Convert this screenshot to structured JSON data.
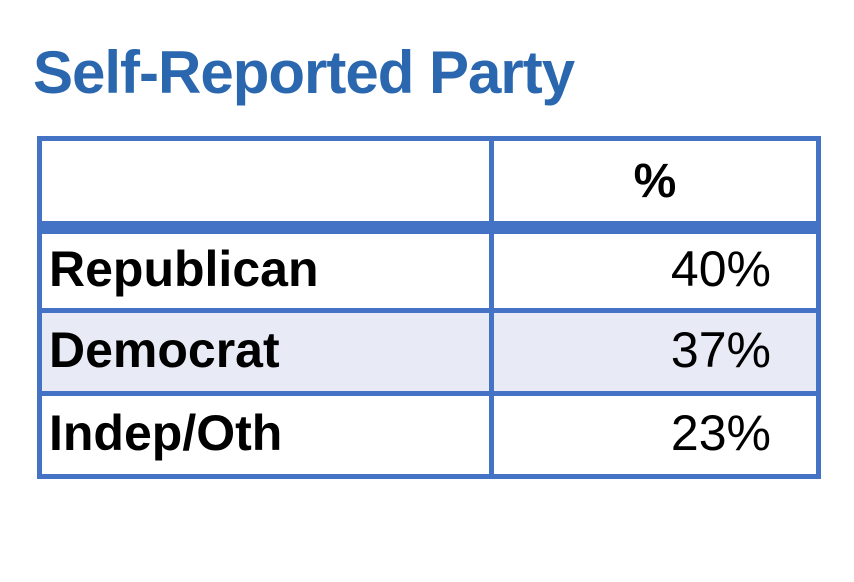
{
  "title": {
    "text": "Self-Reported Party"
  },
  "table": {
    "header": {
      "col1": "",
      "col2": "%"
    },
    "rows": [
      {
        "label": "Republican",
        "value": "40%"
      },
      {
        "label": "Democrat",
        "value": "37%"
      },
      {
        "label": "Indep/Oth",
        "value": "23%"
      }
    ]
  },
  "colors": {
    "title_blue": "#2A67AE",
    "table_border_blue": "#4472C4",
    "banded_row_background": "#E8EBF6",
    "text": "#000000",
    "page_background": "#FFFFFF"
  },
  "chart_data": {
    "type": "table",
    "title": "Self-Reported Party",
    "columns": [
      "",
      "%"
    ],
    "categories": [
      "Republican",
      "Democrat",
      "Indep/Oth"
    ],
    "values": [
      40,
      37,
      23
    ],
    "unit": "%",
    "layout_hints": {
      "header_row_emphasized": true,
      "first_column_bold": true,
      "banded_rows": [
        "Democrat"
      ],
      "value_alignment": "right",
      "header_alignment": "center"
    }
  }
}
